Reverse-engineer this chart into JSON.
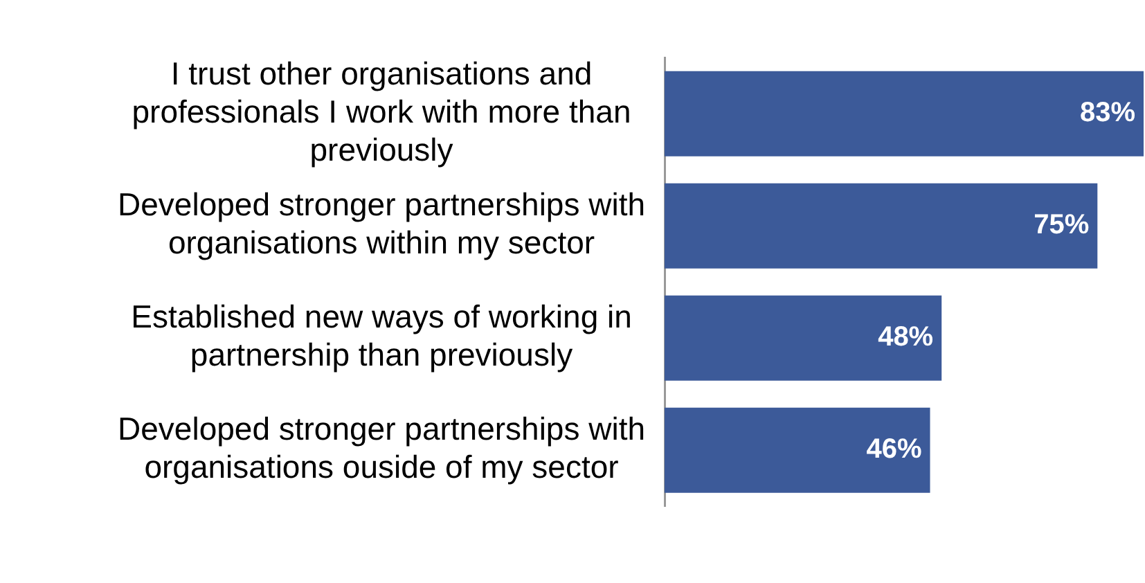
{
  "chart_data": {
    "type": "bar",
    "orientation": "horizontal",
    "categories": [
      "I trust other organisations and professionals I work with more than previously",
      "Developed stronger partnerships with organisations within my sector",
      "Established new ways of working in partnership than previously",
      "Developed stronger partnerships with organisations ouside of my sector"
    ],
    "values": [
      83,
      75,
      48,
      46
    ],
    "color": "#3c5a99",
    "value_labels": [
      "83%",
      "75%",
      "48%",
      "46%"
    ]
  }
}
